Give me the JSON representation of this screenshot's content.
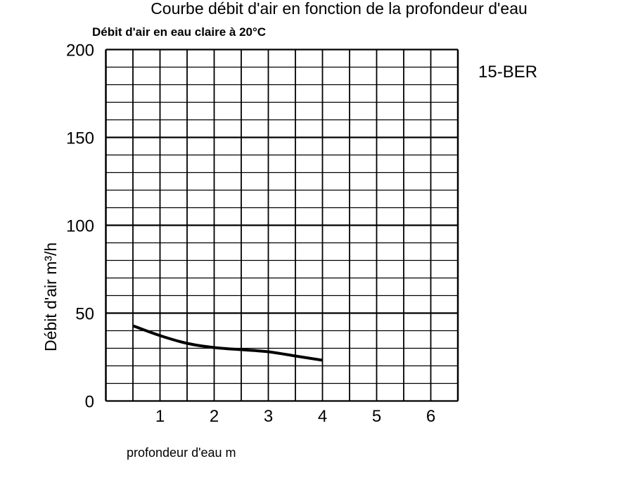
{
  "chart_data": {
    "type": "line",
    "title": "Courbe débit d'air en fonction de la profondeur d'eau",
    "subtitle": "Débit d'air en eau claire à 20°C",
    "model_label": "15-BER",
    "xlabel": "profondeur d'eau m",
    "ylabel": "Débit d'air m³/h",
    "xlim": [
      0,
      6.5
    ],
    "ylim": [
      0,
      200
    ],
    "x_ticks": [
      1,
      2,
      3,
      4,
      5,
      6
    ],
    "y_ticks": [
      0,
      50,
      100,
      150,
      200
    ],
    "grid": true,
    "x_grid_step": 0.5,
    "y_grid_step": 10,
    "series": [
      {
        "color": "#000000",
        "x": [
          0.5,
          1,
          1.5,
          2,
          2.5,
          3,
          3.5,
          4
        ],
        "y": [
          42.8,
          37.2,
          32.8,
          30.4,
          29.2,
          28.0,
          25.6,
          23.2
        ]
      }
    ]
  }
}
